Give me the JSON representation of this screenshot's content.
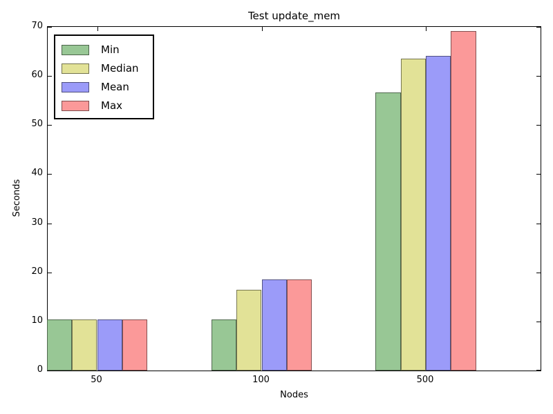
{
  "chart_data": {
    "type": "bar",
    "title": "Test update_mem",
    "xlabel": "Nodes",
    "ylabel": "Seconds",
    "categories": [
      "50",
      "100",
      "500"
    ],
    "series": [
      {
        "name": "Min",
        "color": "#98c795",
        "values": [
          10.4,
          10.4,
          56.7
        ]
      },
      {
        "name": "Median",
        "color": "#e2e297",
        "values": [
          10.4,
          16.5,
          63.5
        ]
      },
      {
        "name": "Mean",
        "color": "#9b9bf9",
        "values": [
          10.4,
          18.5,
          64.1
        ]
      },
      {
        "name": "Max",
        "color": "#fb9999",
        "values": [
          10.4,
          18.5,
          69.2
        ]
      }
    ],
    "ylim": [
      0,
      70
    ],
    "yticks": [
      0,
      10,
      20,
      30,
      40,
      50,
      60,
      70
    ],
    "legend_position": "upper left",
    "grid": false,
    "frame_color": "#000000",
    "background_color": "#ffffff"
  }
}
